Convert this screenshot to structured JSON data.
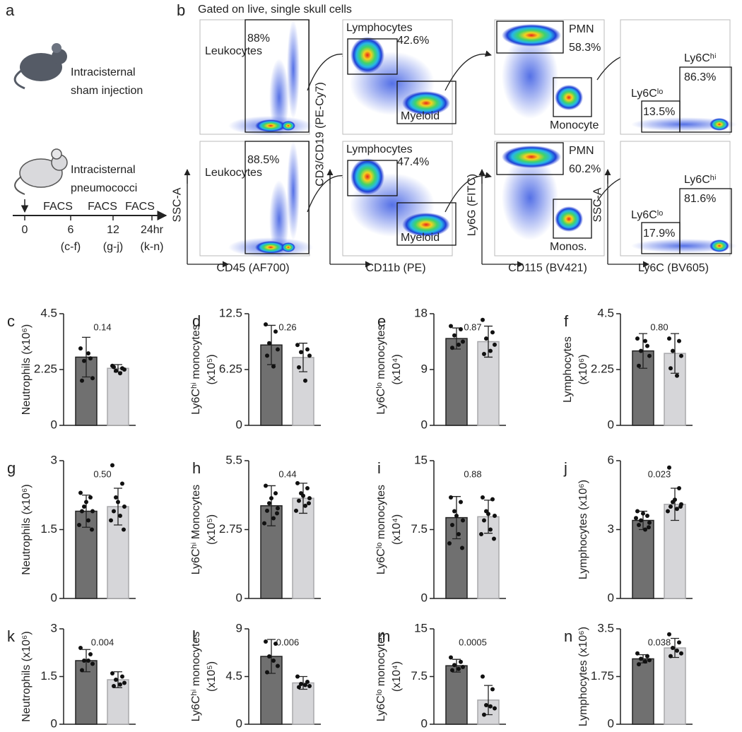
{
  "panel_a": {
    "label": "a",
    "groups": [
      [
        "Intracisternal",
        "sham injection"
      ],
      [
        "Intracisternal",
        "pneumococci"
      ]
    ],
    "timeline": {
      "ticks": [
        "0",
        "6",
        "12",
        "24hr"
      ],
      "events": [
        "FACS",
        "FACS",
        "FACS"
      ],
      "panels": [
        "(c-f)",
        "(g-j)",
        "(k-n)"
      ]
    }
  },
  "panel_b": {
    "label": "b",
    "title": "Gated on live, single skull cells",
    "plots": [
      {
        "texts": [
          "Leukocytes",
          "88%"
        ]
      },
      {
        "texts": [
          "Lymphocytes",
          "42.6%",
          "Myeloid"
        ]
      },
      {
        "texts": [
          "PMN",
          "58.3%",
          "Monocyte"
        ]
      },
      {
        "texts": [
          "Ly6Cˡᵒ",
          "13.5%",
          "Ly6Cʰⁱ",
          "86.3%"
        ]
      },
      {
        "texts": [
          "Leukocytes",
          "88.5%"
        ]
      },
      {
        "texts": [
          "Lymphocytes",
          "47.4%",
          "Myeloid"
        ]
      },
      {
        "texts": [
          "PMN",
          "60.2%",
          "Monos."
        ]
      },
      {
        "texts": [
          "Ly6Cˡᵒ",
          "17.9%",
          "Ly6Cʰⁱ",
          "81.6%"
        ]
      }
    ],
    "axis_labels": [
      [
        "SSC-A",
        "CD45 (AF700)"
      ],
      [
        "CD3/CD19 (PE-Cy7)",
        "CD11b (PE)"
      ],
      [
        "Ly6G (FITC)",
        "CD115 (BV421)"
      ],
      [
        "SSC-A",
        "Ly6C (BV605)"
      ]
    ]
  },
  "chart_data": [
    {
      "type": "bar",
      "label": "c",
      "ylabel": [
        "Neutrophils (x10⁶)"
      ],
      "annotation": "0.14",
      "ylim": [
        0,
        4.5
      ],
      "yticks": [
        0,
        2.25,
        4.5
      ],
      "colors": [
        "#707070",
        "#d6d6d9"
      ],
      "values": [
        2.75,
        2.3
      ],
      "errors": [
        0.8,
        0.15
      ],
      "points": [
        [
          3.1,
          2.7,
          2.6,
          1.9,
          1.8,
          2.9
        ],
        [
          2.4,
          2.3,
          2.2,
          2.25,
          2.35,
          2.1
        ]
      ]
    },
    {
      "type": "bar",
      "label": "d",
      "ylabel": [
        "Ly6Cʰⁱ monocytes",
        "(x10⁵)"
      ],
      "annotation": "0.26",
      "ylim": [
        0,
        12.5
      ],
      "yticks": [
        0,
        6.25,
        12.5
      ],
      "colors": [
        "#707070",
        "#d6d6d9"
      ],
      "values": [
        9.0,
        7.6
      ],
      "errors": [
        2.2,
        1.6
      ],
      "points": [
        [
          11.3,
          10.5,
          9.2,
          8.5,
          7.8,
          6.6
        ],
        [
          9.0,
          8.5,
          8.2,
          7.8,
          6.5,
          5.0
        ]
      ]
    },
    {
      "type": "bar",
      "label": "e",
      "ylabel": [
        "Ly6Cˡᵒ monocytes",
        "(x10⁴)"
      ],
      "annotation": "0.87",
      "ylim": [
        0,
        18
      ],
      "yticks": [
        0,
        9,
        18
      ],
      "colors": [
        "#707070",
        "#d6d6d9"
      ],
      "values": [
        14,
        13.5
      ],
      "errors": [
        1.7,
        2.5
      ],
      "points": [
        [
          16,
          15.5,
          14.5,
          13.5,
          12.5,
          13
        ],
        [
          17,
          15,
          14,
          13,
          11.5,
          12
        ]
      ]
    },
    {
      "type": "bar",
      "label": "f",
      "ylabel": [
        "Lymphocytes",
        "(x10⁶)"
      ],
      "annotation": "0.80",
      "ylim": [
        0,
        4.5
      ],
      "yticks": [
        0,
        2.25,
        4.5
      ],
      "colors": [
        "#707070",
        "#d6d6d9"
      ],
      "values": [
        3.0,
        2.9
      ],
      "errors": [
        0.7,
        0.8
      ],
      "points": [
        [
          3.5,
          3.2,
          3.0,
          2.8,
          2.4,
          3.4
        ],
        [
          3.5,
          3.4,
          3.0,
          2.8,
          2.3,
          2.0
        ]
      ]
    },
    {
      "type": "bar",
      "label": "g",
      "ylabel": [
        "Neutrophils (x10⁶)"
      ],
      "annotation": "0.50",
      "ylim": [
        0,
        3
      ],
      "yticks": [
        0,
        1.5,
        3
      ],
      "colors": [
        "#707070",
        "#d6d6d9"
      ],
      "values": [
        1.9,
        2.0
      ],
      "errors": [
        0.35,
        0.4
      ],
      "points": [
        [
          2.3,
          2.2,
          2.0,
          1.9,
          1.9,
          1.7,
          1.6,
          1.5,
          2.1
        ],
        [
          2.9,
          2.5,
          2.2,
          2.0,
          1.9,
          1.8,
          1.7,
          1.5,
          2.1
        ]
      ]
    },
    {
      "type": "bar",
      "label": "h",
      "ylabel": [
        "Ly6Cʰⁱ Monocytes",
        "(x10⁵)"
      ],
      "annotation": "0.44",
      "ylim": [
        0,
        5.5
      ],
      "yticks": [
        0,
        2.75,
        5.5
      ],
      "colors": [
        "#707070",
        "#d6d6d9"
      ],
      "values": [
        3.7,
        4.0
      ],
      "errors": [
        0.8,
        0.6
      ],
      "points": [
        [
          4.5,
          4.2,
          3.8,
          3.6,
          3.5,
          3.2,
          3.0,
          3.4,
          4.0
        ],
        [
          4.6,
          4.4,
          4.2,
          4.0,
          3.9,
          3.7,
          3.5,
          3.8,
          4.1
        ]
      ]
    },
    {
      "type": "bar",
      "label": "i",
      "ylabel": [
        "Ly6Cˡᵒ monocytes",
        "(x10⁴)"
      ],
      "annotation": "0.88",
      "ylim": [
        0,
        15
      ],
      "yticks": [
        0,
        7.5,
        15
      ],
      "colors": [
        "#707070",
        "#d6d6d9"
      ],
      "values": [
        8.8,
        8.9
      ],
      "errors": [
        2.3,
        1.8
      ],
      "points": [
        [
          11,
          10.5,
          9.5,
          8.5,
          8,
          7,
          6,
          5.5,
          9
        ],
        [
          11,
          10.8,
          9.5,
          9,
          8.5,
          7.5,
          7,
          6.5,
          9.2
        ]
      ]
    },
    {
      "type": "bar",
      "label": "j",
      "ylabel": [
        "Lymphocytes (x10⁶)"
      ],
      "annotation": "0.023",
      "ylim": [
        0,
        6
      ],
      "yticks": [
        0,
        3,
        6
      ],
      "colors": [
        "#707070",
        "#d6d6d9"
      ],
      "values": [
        3.4,
        4.1
      ],
      "errors": [
        0.4,
        0.7
      ],
      "points": [
        [
          3.8,
          3.6,
          3.4,
          3.3,
          3.2,
          3.0,
          3.5,
          3.1,
          3.7
        ],
        [
          5.7,
          4.8,
          4.2,
          4.1,
          4.0,
          3.9,
          3.8,
          4.0,
          4.3
        ]
      ]
    },
    {
      "type": "bar",
      "label": "k",
      "ylabel": [
        "Neutrophils (x10⁶)"
      ],
      "annotation": "0.004",
      "ylim": [
        0,
        3
      ],
      "yticks": [
        0,
        1.5,
        3
      ],
      "colors": [
        "#707070",
        "#d6d6d9"
      ],
      "values": [
        2.0,
        1.4
      ],
      "errors": [
        0.35,
        0.25
      ],
      "points": [
        [
          2.4,
          2.2,
          2.0,
          1.9,
          1.7,
          2.0
        ],
        [
          1.6,
          1.5,
          1.4,
          1.3,
          1.2,
          1.25
        ]
      ]
    },
    {
      "type": "bar",
      "label": "l",
      "ylabel": [
        "Ly6Cʰⁱ monocytes",
        "(x10⁵)"
      ],
      "annotation": "0.006",
      "ylim": [
        0,
        9
      ],
      "yticks": [
        0,
        4.5,
        9
      ],
      "colors": [
        "#707070",
        "#d6d6d9"
      ],
      "values": [
        6.4,
        3.9
      ],
      "errors": [
        1.6,
        0.6
      ],
      "points": [
        [
          7.8,
          7.6,
          6.4,
          5.5,
          4.9,
          6.0
        ],
        [
          4.5,
          4.0,
          3.8,
          3.6,
          3.5,
          3.7
        ]
      ]
    },
    {
      "type": "bar",
      "label": "m",
      "ylabel": [
        "Ly6Cˡᵒ monocytes",
        "(x10⁴)"
      ],
      "annotation": "0.0005",
      "ylim": [
        0,
        15
      ],
      "yticks": [
        0,
        7.5,
        15
      ],
      "colors": [
        "#707070",
        "#d6d6d9"
      ],
      "values": [
        9.2,
        3.8
      ],
      "errors": [
        1.0,
        2.3
      ],
      "points": [
        [
          10.5,
          9.8,
          9.3,
          9.0,
          8.5,
          8.7
        ],
        [
          7.5,
          5.5,
          3.0,
          2.5,
          1.5,
          2.8
        ]
      ]
    },
    {
      "type": "bar",
      "label": "n",
      "ylabel": [
        "Lymphocytes (x10⁶)"
      ],
      "annotation": "0.038",
      "ylim": [
        0,
        3.5
      ],
      "yticks": [
        0,
        1.75,
        3.5
      ],
      "colors": [
        "#707070",
        "#d6d6d9"
      ],
      "values": [
        2.4,
        2.8
      ],
      "errors": [
        0.15,
        0.35
      ],
      "points": [
        [
          2.6,
          2.5,
          2.4,
          2.35,
          2.2,
          2.3
        ],
        [
          3.3,
          3.0,
          2.8,
          2.6,
          2.5,
          2.7
        ]
      ]
    }
  ]
}
